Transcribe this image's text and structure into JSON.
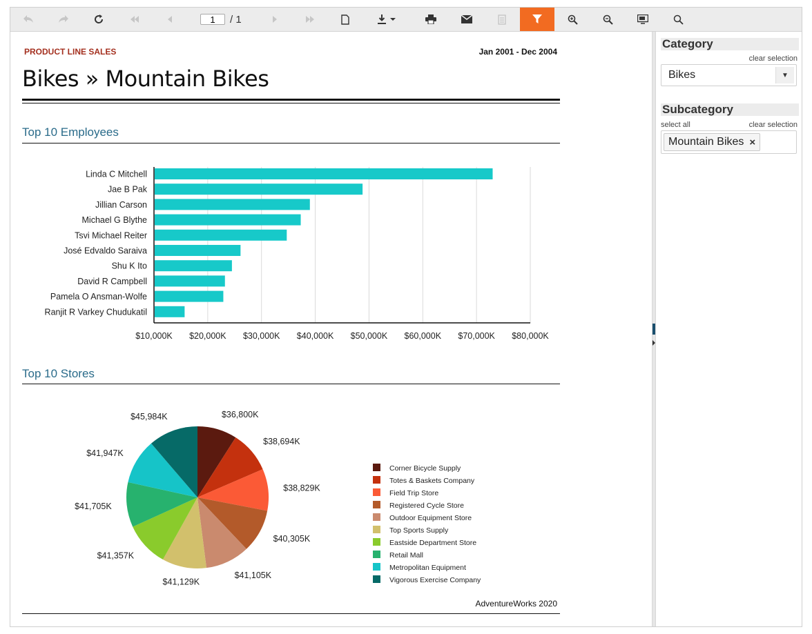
{
  "toolbar": {
    "page_current": "1",
    "page_total": "/ 1",
    "buttons": [
      {
        "name": "back-button",
        "icon": "back-icon",
        "disabled": true
      },
      {
        "name": "forward-button",
        "icon": "forward-icon",
        "disabled": true
      },
      {
        "name": "refresh-button",
        "icon": "refresh-icon",
        "disabled": false
      },
      {
        "name": "first-page-button",
        "icon": "first-page-icon",
        "disabled": true
      },
      {
        "name": "prev-page-button",
        "icon": "prev-page-icon",
        "disabled": true
      },
      {
        "name": "next-page-button",
        "icon": "next-page-icon",
        "disabled": true
      },
      {
        "name": "last-page-button",
        "icon": "last-page-icon",
        "disabled": true
      },
      {
        "name": "print-layout-button",
        "icon": "page-icon",
        "disabled": false
      },
      {
        "name": "export-button",
        "icon": "download-icon",
        "disabled": false
      },
      {
        "name": "print-button",
        "icon": "printer-icon",
        "disabled": false
      },
      {
        "name": "email-button",
        "icon": "envelope-icon",
        "disabled": false
      },
      {
        "name": "document-map-button",
        "icon": "document-map-icon",
        "disabled": true
      },
      {
        "name": "filter-button",
        "icon": "filter-icon",
        "disabled": false,
        "active": true
      },
      {
        "name": "zoom-in-button",
        "icon": "zoom-in-icon",
        "disabled": false
      },
      {
        "name": "zoom-out-button",
        "icon": "zoom-out-icon",
        "disabled": false
      },
      {
        "name": "fullscreen-button",
        "icon": "monitor-icon",
        "disabled": false
      },
      {
        "name": "search-button",
        "icon": "search-icon",
        "disabled": false
      }
    ]
  },
  "report": {
    "super_title": "PRODUCT LINE SALES",
    "date_range": "Jan 2001 - Dec 2004",
    "title": "Bikes » Mountain Bikes",
    "section_employees": "Top 10 Employees",
    "section_stores": "Top 10 Stores",
    "footer": "AdventureWorks 2020"
  },
  "params": {
    "category_label": "Category",
    "category_clear": "clear selection",
    "category_value": "Bikes",
    "subcategory_label": "Subcategory",
    "subcategory_select_all": "select all",
    "subcategory_clear": "clear selection",
    "subcategory_chip": "Mountain Bikes",
    "chip_remove": "×"
  },
  "colors": {
    "accent": "#f26b21",
    "bar": "#17c9c9",
    "section_title": "#2a6b8a",
    "super_title": "#a4301f"
  },
  "chart_data": [
    {
      "type": "bar",
      "orientation": "horizontal",
      "title": "Top 10 Employees",
      "categories": [
        "Linda C Mitchell",
        "Jae B Pak",
        "Jillian  Carson",
        "Michael G Blythe",
        "Tsvi Michael Reiter",
        "José Edvaldo Saraiva",
        "Shu K Ito",
        "David R Campbell",
        "Pamela O Ansman-Wolfe",
        "Ranjit R Varkey Chudukatil"
      ],
      "values": [
        73000,
        48800,
        39000,
        37300,
        34700,
        26100,
        24500,
        23200,
        22900,
        15700
      ],
      "xlim": [
        10000,
        80000
      ],
      "tick_values": [
        10000,
        20000,
        30000,
        40000,
        50000,
        60000,
        70000,
        80000
      ],
      "tick_labels": [
        "$10,000K",
        "$20,000K",
        "$30,000K",
        "$40,000K",
        "$50,000K",
        "$60,000K",
        "$70,000K",
        "$80,000K"
      ],
      "grid": true,
      "color": "#17c9c9"
    },
    {
      "type": "pie",
      "title": "Top 10 Stores",
      "legend_position": "right",
      "slices": [
        {
          "name": "Corner Bicycle Supply",
          "value": 36800,
          "label": "$36,800K",
          "color": "#5b1a0f"
        },
        {
          "name": "Totes & Baskets Company",
          "value": 38694,
          "label": "$38,694K",
          "color": "#c4310e"
        },
        {
          "name": "Field Trip Store",
          "value": 38829,
          "label": "$38,829K",
          "color": "#fb5a36"
        },
        {
          "name": "Registered Cycle Store",
          "value": 40305,
          "label": "$40,305K",
          "color": "#b35a2a"
        },
        {
          "name": "Outdoor Equipment Store",
          "value": 41105,
          "label": "$41,105K",
          "color": "#ca8a6e"
        },
        {
          "name": "Top Sports Supply",
          "value": 41129,
          "label": "$41,129K",
          "color": "#d2c06c"
        },
        {
          "name": "Eastside Department Store",
          "value": 41357,
          "label": "$41,357K",
          "color": "#8acb2c"
        },
        {
          "name": "Retail Mall",
          "value": 41705,
          "label": "$41,705K",
          "color": "#27b26e"
        },
        {
          "name": "Metropolitan Equipment",
          "value": 41947,
          "label": "$41,947K",
          "color": "#16c4c8"
        },
        {
          "name": "Vigorous Exercise Company",
          "value": 45984,
          "label": "$45,984K",
          "color": "#066a67"
        }
      ]
    }
  ]
}
